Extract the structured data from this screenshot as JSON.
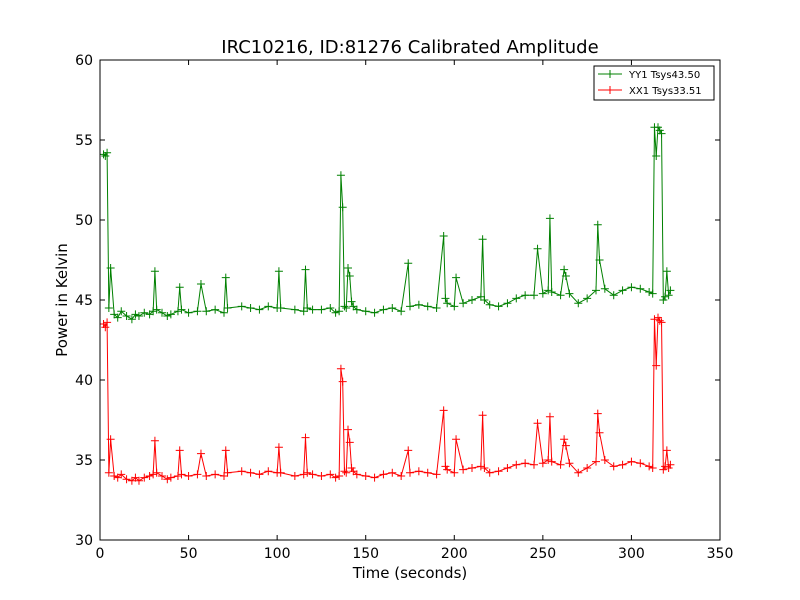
{
  "chart_data": {
    "type": "line",
    "title": "IRC10216, ID:81276 Calibrated Amplitude",
    "xlabel": "Time (seconds)",
    "ylabel": "Power in Kelvin",
    "xlim": [
      0,
      350
    ],
    "ylim": [
      30,
      60
    ],
    "xticks": [
      "0",
      "50",
      "100",
      "150",
      "200",
      "250",
      "300",
      "350"
    ],
    "yticks": [
      "30",
      "35",
      "40",
      "45",
      "50",
      "55",
      "60"
    ],
    "grid": false,
    "legend_position": "top-right",
    "marker": "+",
    "series": [
      {
        "name": "YY1 Tsys43.50",
        "color": "#008000",
        "x": [
          2,
          3,
          4,
          5,
          6,
          8,
          10,
          12,
          15,
          18,
          20,
          22,
          25,
          28,
          30,
          31,
          32,
          35,
          38,
          40,
          44,
          45,
          46,
          50,
          55,
          57,
          60,
          65,
          70,
          71,
          72,
          80,
          85,
          90,
          95,
          100,
          101,
          102,
          110,
          115,
          116,
          117,
          120,
          125,
          130,
          133,
          135,
          136,
          137,
          138,
          139,
          140,
          141,
          142,
          143,
          145,
          150,
          155,
          160,
          165,
          170,
          174,
          175,
          180,
          185,
          190,
          194,
          195,
          196,
          200,
          201,
          205,
          210,
          215,
          216,
          217,
          220,
          225,
          230,
          235,
          240,
          245,
          247,
          250,
          253,
          254,
          255,
          260,
          262,
          263,
          265,
          270,
          275,
          280,
          281,
          282,
          285,
          290,
          295,
          300,
          305,
          310,
          312,
          313,
          314,
          315,
          316,
          317,
          318,
          319,
          320,
          321,
          322
        ],
        "values": [
          54.1,
          54.0,
          54.2,
          44.5,
          47.0,
          44.1,
          43.9,
          44.3,
          44.0,
          43.8,
          44.1,
          44.0,
          44.2,
          44.1,
          44.3,
          46.8,
          44.4,
          44.2,
          44.0,
          44.1,
          44.3,
          45.8,
          44.4,
          44.2,
          44.3,
          46.0,
          44.3,
          44.4,
          44.2,
          46.4,
          44.5,
          44.6,
          44.5,
          44.4,
          44.6,
          44.5,
          46.8,
          44.5,
          44.4,
          44.3,
          46.9,
          44.5,
          44.4,
          44.4,
          44.5,
          44.2,
          44.3,
          52.8,
          50.8,
          44.6,
          44.5,
          47.0,
          46.5,
          44.9,
          44.6,
          44.4,
          44.3,
          44.2,
          44.4,
          44.5,
          44.3,
          47.3,
          44.6,
          44.7,
          44.6,
          44.5,
          49.0,
          45.1,
          44.8,
          44.6,
          46.4,
          44.8,
          45.0,
          45.2,
          48.8,
          45.0,
          44.7,
          44.6,
          44.8,
          45.1,
          45.3,
          45.3,
          48.2,
          45.4,
          45.6,
          50.1,
          45.5,
          45.3,
          46.9,
          46.5,
          45.4,
          44.8,
          45.1,
          45.6,
          49.7,
          47.5,
          45.7,
          45.3,
          45.6,
          45.8,
          45.7,
          45.5,
          45.4,
          55.8,
          54.0,
          55.8,
          55.6,
          55.4,
          45.0,
          45.2,
          46.8,
          45.3,
          45.6
        ]
      },
      {
        "name": "XX1 Tsys33.51",
        "color": "#ff0000",
        "x": [
          2,
          3,
          4,
          5,
          6,
          8,
          10,
          12,
          15,
          18,
          20,
          22,
          25,
          28,
          30,
          31,
          32,
          35,
          38,
          40,
          44,
          45,
          46,
          50,
          55,
          57,
          60,
          65,
          70,
          71,
          72,
          80,
          85,
          90,
          95,
          100,
          101,
          102,
          110,
          115,
          116,
          117,
          120,
          125,
          130,
          133,
          135,
          136,
          137,
          138,
          139,
          140,
          141,
          142,
          143,
          145,
          150,
          155,
          160,
          165,
          170,
          174,
          175,
          180,
          185,
          190,
          194,
          195,
          196,
          200,
          201,
          205,
          210,
          215,
          216,
          217,
          220,
          225,
          230,
          235,
          240,
          245,
          247,
          250,
          253,
          254,
          255,
          260,
          262,
          263,
          265,
          270,
          275,
          280,
          281,
          282,
          285,
          290,
          295,
          300,
          305,
          310,
          312,
          313,
          314,
          315,
          316,
          317,
          318,
          319,
          320,
          321,
          322
        ],
        "values": [
          43.5,
          43.3,
          43.6,
          34.2,
          36.3,
          34.0,
          33.9,
          34.1,
          33.8,
          33.7,
          33.9,
          33.7,
          33.9,
          34.0,
          34.1,
          36.2,
          34.2,
          34.0,
          33.8,
          33.9,
          34.0,
          35.6,
          34.1,
          34.0,
          34.1,
          35.4,
          34.0,
          34.1,
          34.0,
          35.6,
          34.2,
          34.3,
          34.2,
          34.1,
          34.3,
          34.2,
          35.8,
          34.2,
          34.0,
          34.1,
          36.4,
          34.2,
          34.1,
          34.0,
          34.1,
          33.9,
          34.0,
          40.7,
          39.9,
          34.3,
          34.2,
          36.9,
          36.1,
          34.5,
          34.3,
          34.1,
          34.0,
          33.9,
          34.1,
          34.2,
          34.0,
          35.6,
          34.2,
          34.3,
          34.2,
          34.1,
          38.1,
          34.6,
          34.4,
          34.2,
          36.3,
          34.4,
          34.5,
          34.6,
          37.8,
          34.5,
          34.2,
          34.3,
          34.5,
          34.7,
          34.8,
          34.7,
          37.3,
          34.8,
          35.0,
          37.7,
          34.9,
          34.7,
          36.3,
          35.9,
          34.8,
          34.2,
          34.5,
          34.9,
          37.9,
          36.7,
          35.0,
          34.6,
          34.7,
          34.9,
          34.8,
          34.6,
          34.5,
          43.8,
          40.9,
          43.9,
          43.7,
          43.6,
          34.4,
          34.6,
          35.6,
          34.5,
          34.7
        ]
      }
    ]
  }
}
